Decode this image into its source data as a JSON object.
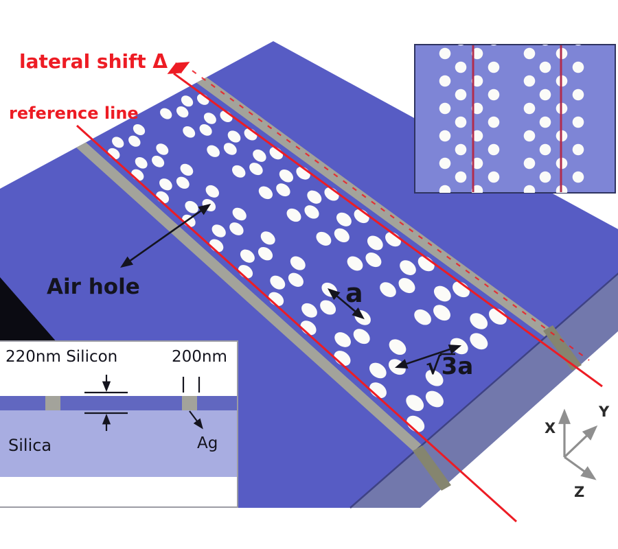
{
  "figure": {
    "annotations": {
      "lateral_shift": "lateral shift Δ",
      "reference_line": "reference line",
      "air_hole": "Air hole",
      "lattice_constant": "a",
      "row_spacing": "√3a"
    },
    "cross_section_inset": {
      "silicon_label": "220nm Silicon",
      "metal_width_label": "200nm",
      "metal_label": "Ag",
      "substrate_label": "Silica"
    },
    "axes": {
      "x": "X",
      "y": "Y",
      "z": "Z"
    },
    "colors": {
      "slab_top": "#575cc4",
      "slab_side": "#7278ac",
      "slab_edge": "#3e4284",
      "slab_end": "#0b0b12",
      "metal_stripe": "#a3a39b",
      "metal_stripe_side": "#85856f",
      "hole": "#fbfbf8",
      "red_line": "#ed1c24",
      "inset_red_line": "#b12d4d",
      "inset_top_bg": "#7e85d6",
      "inset_border": "#2e3360",
      "silicon_layer": "#6167c0",
      "silica_layer": "#a8ade1",
      "ink": "#14141e",
      "axis_gray": "#8f8f8f"
    }
  }
}
